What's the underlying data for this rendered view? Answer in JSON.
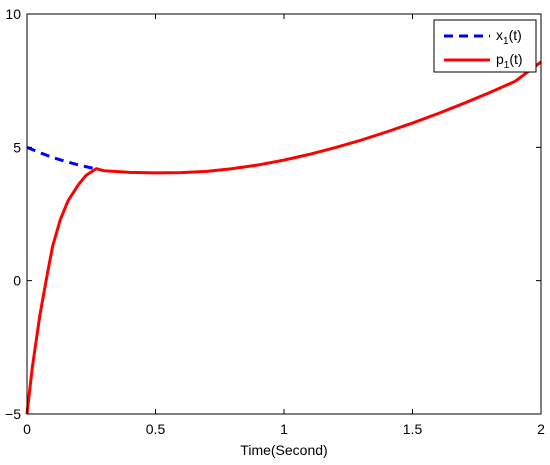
{
  "chart_data": {
    "type": "line",
    "title": "",
    "xlabel": "Time(Second)",
    "ylabel": "",
    "xlim": [
      0,
      2
    ],
    "ylim": [
      -5,
      10
    ],
    "xticks": [
      0,
      0.5,
      1,
      1.5,
      2
    ],
    "xtick_labels": [
      "0",
      "0.5",
      "1",
      "1.5",
      "2"
    ],
    "yticks": [
      -5,
      0,
      5,
      10
    ],
    "ytick_labels": [
      "−5",
      "0",
      "5",
      "10"
    ],
    "grid": false,
    "legend_position": "top-right",
    "series": [
      {
        "name": "x",
        "name_subscript": "1",
        "name_suffix": "(t)",
        "color": "#0000ff",
        "style": "dashed",
        "x": [
          0,
          0.05,
          0.1,
          0.15,
          0.2,
          0.25,
          0.27
        ],
        "y": [
          5.0,
          4.8,
          4.62,
          4.47,
          4.34,
          4.23,
          4.2
        ]
      },
      {
        "name": "p",
        "name_subscript": "1",
        "name_suffix": "(t)",
        "color": "#ff0000",
        "style": "solid",
        "x": [
          0,
          0.02,
          0.05,
          0.08,
          0.1,
          0.13,
          0.16,
          0.2,
          0.23,
          0.27,
          0.3,
          0.4,
          0.5,
          0.6,
          0.7,
          0.8,
          0.9,
          1.0,
          1.1,
          1.2,
          1.3,
          1.4,
          1.5,
          1.6,
          1.7,
          1.8,
          1.9,
          2.0
        ],
        "y": [
          -5.0,
          -3.3,
          -1.3,
          0.3,
          1.3,
          2.3,
          3.0,
          3.6,
          3.95,
          4.2,
          4.12,
          4.06,
          4.04,
          4.05,
          4.1,
          4.2,
          4.34,
          4.52,
          4.74,
          4.99,
          5.27,
          5.58,
          5.91,
          6.27,
          6.65,
          7.05,
          7.48,
          8.2
        ]
      }
    ]
  }
}
